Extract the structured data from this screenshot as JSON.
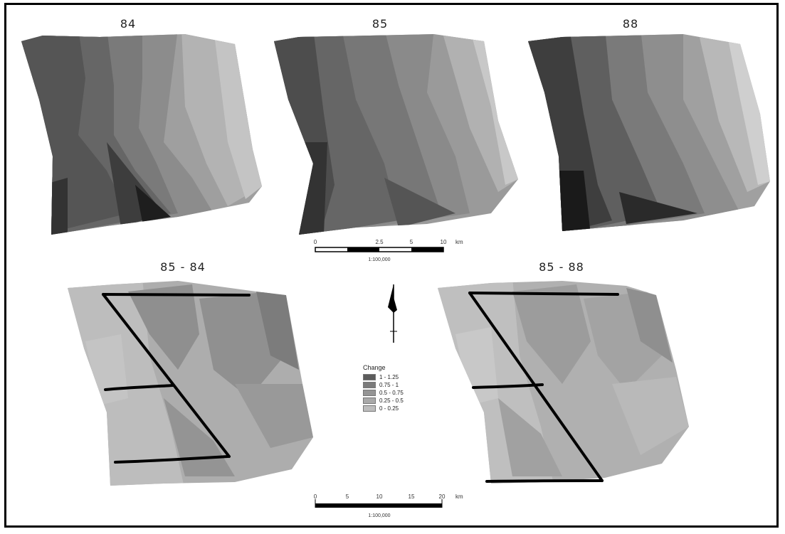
{
  "maps": {
    "top_left_title": "84",
    "top_middle_title": "85",
    "top_right_title": "88",
    "bottom_left_title": "85 - 84",
    "bottom_right_title": "85 - 88"
  },
  "scalebar_top": {
    "ticks": [
      "0",
      "2.5",
      "5",
      "10"
    ],
    "unit": "km",
    "caption": "1:100,000"
  },
  "scalebar_bottom": {
    "ticks": [
      "0",
      "5",
      "10",
      "15",
      "20"
    ],
    "unit": "km",
    "caption": "1:100,000"
  },
  "legend": {
    "title": "Change",
    "items": [
      {
        "label": "1 - 1.25",
        "color": "#5c5c5c"
      },
      {
        "label": "0.75 - 1",
        "color": "#7a7a7a"
      },
      {
        "label": "0.5 - 0.75",
        "color": "#959595"
      },
      {
        "label": "0.25 - 0.5",
        "color": "#a9a9a9"
      },
      {
        "label": "0 - 0.25",
        "color": "#bdbdbd"
      }
    ]
  },
  "north_arrow": "north-arrow-icon"
}
